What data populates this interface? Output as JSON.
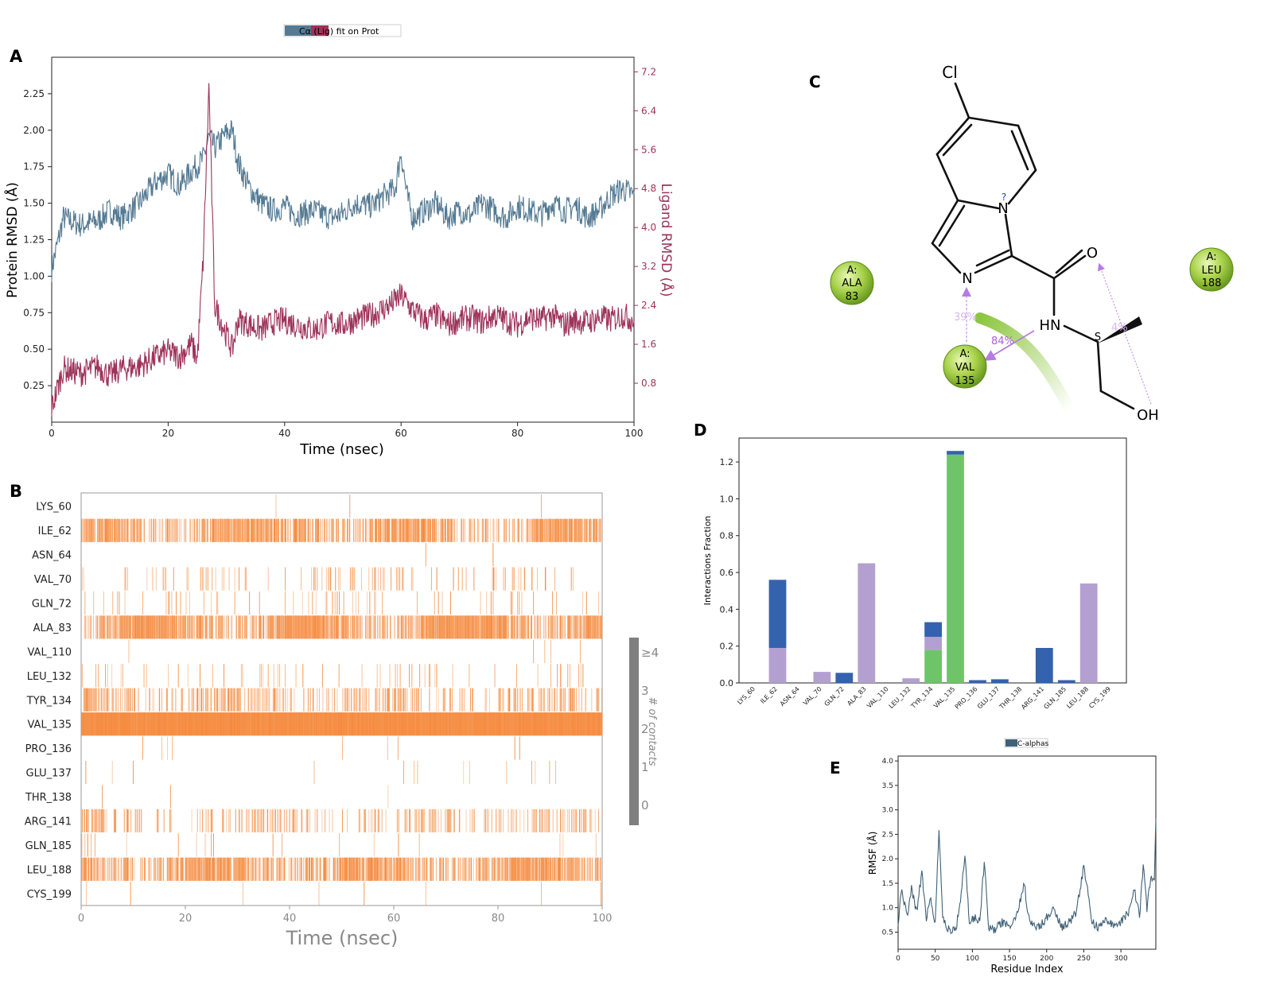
{
  "panel_labels": {
    "a": "A",
    "b": "B",
    "c": "C",
    "d": "D",
    "e": "E"
  },
  "colors": {
    "protein": "#557A93",
    "ligand": "#9E3359",
    "contact": "#F5893C",
    "hbond": "#6FC46A",
    "hydrophobic": "#B3A0D0",
    "water": "#3562AF",
    "rmsf": "#3F6178",
    "gradient_bar": "#7f7f7f",
    "residue_ball": "#9cc83a"
  },
  "chart_data": [
    {
      "id": "A",
      "type": "line",
      "legend": "Cα  (Lig) fit on Prot",
      "xlabel": "Time (nsec)",
      "ylabel_left": "Protein RMSD (Å)",
      "ylabel_right": "Ligand RMSD (Å)",
      "xlim": [
        0,
        100
      ],
      "ylim_left": [
        0,
        2.5
      ],
      "ylim_right": [
        0,
        7.5
      ],
      "x_ticks": [
        "0",
        "20",
        "40",
        "60",
        "80",
        "100"
      ],
      "y_ticks_left": [
        "0.25",
        "0.50",
        "0.75",
        "1.00",
        "1.25",
        "1.50",
        "1.75",
        "2.00",
        "2.25"
      ],
      "y_ticks_right": [
        "0.8",
        "1.6",
        "2.4",
        "3.2",
        "4.0",
        "4.8",
        "5.6",
        "6.4",
        "7.2"
      ],
      "series": [
        {
          "name": "Cα",
          "axis": "left",
          "x": [
            0,
            2,
            5,
            8,
            10,
            12,
            15,
            18,
            20,
            22,
            24,
            26,
            27,
            28,
            30,
            31,
            32,
            34,
            36,
            38,
            40,
            42,
            45,
            48,
            50,
            52,
            55,
            57,
            59,
            60,
            61,
            62,
            64,
            66,
            68,
            70,
            72,
            74,
            76,
            78,
            80,
            82,
            84,
            86,
            88,
            90,
            92,
            94,
            96,
            98,
            100
          ],
          "y": [
            1.05,
            1.4,
            1.35,
            1.38,
            1.45,
            1.4,
            1.5,
            1.65,
            1.7,
            1.62,
            1.72,
            1.8,
            1.95,
            1.88,
            1.98,
            2.0,
            1.78,
            1.6,
            1.5,
            1.45,
            1.48,
            1.42,
            1.45,
            1.4,
            1.43,
            1.5,
            1.48,
            1.55,
            1.6,
            1.85,
            1.55,
            1.4,
            1.45,
            1.5,
            1.4,
            1.45,
            1.42,
            1.5,
            1.45,
            1.4,
            1.48,
            1.45,
            1.42,
            1.5,
            1.45,
            1.48,
            1.4,
            1.45,
            1.55,
            1.6,
            1.55
          ]
        },
        {
          "name": "(Lig) fit on Prot",
          "axis": "right",
          "x": [
            0,
            2,
            5,
            8,
            10,
            12,
            15,
            18,
            20,
            22,
            24,
            25,
            26,
            27,
            28,
            30,
            31,
            32,
            34,
            36,
            38,
            40,
            42,
            45,
            48,
            50,
            52,
            55,
            58,
            60,
            62,
            64,
            66,
            68,
            70,
            72,
            74,
            76,
            78,
            80,
            82,
            84,
            86,
            88,
            90,
            92,
            94,
            96,
            98,
            100
          ],
          "y": [
            0.3,
            1.1,
            1.0,
            1.15,
            0.95,
            1.1,
            1.15,
            1.35,
            1.45,
            1.35,
            1.6,
            1.3,
            3.3,
            6.9,
            2.4,
            1.8,
            1.5,
            2.1,
            2.0,
            1.9,
            2.05,
            2.1,
            2.0,
            1.9,
            2.05,
            2.0,
            2.1,
            2.2,
            2.4,
            2.6,
            2.3,
            2.1,
            2.2,
            2.0,
            2.1,
            2.15,
            2.05,
            2.2,
            2.1,
            2.0,
            2.15,
            2.1,
            2.2,
            2.0,
            2.1,
            2.05,
            2.15,
            2.1,
            2.2,
            2.1
          ]
        }
      ]
    },
    {
      "id": "B",
      "type": "heatmap",
      "xlabel": "Time (nsec)",
      "xlim": [
        0,
        100
      ],
      "x_ticks": [
        "0",
        "20",
        "40",
        "60",
        "80",
        "100"
      ],
      "residues": [
        "LYS_60",
        "ILE_62",
        "ASN_64",
        "VAL_70",
        "GLN_72",
        "ALA_83",
        "VAL_110",
        "LEU_132",
        "TYR_134",
        "VAL_135",
        "PRO_136",
        "GLU_137",
        "THR_138",
        "ARG_141",
        "GLN_185",
        "LEU_188",
        "CYS_199"
      ],
      "occupancy": [
        0.003,
        0.5,
        0.003,
        0.08,
        0.05,
        0.66,
        0.002,
        0.04,
        0.25,
        1.0,
        0.01,
        0.02,
        0.004,
        0.19,
        0.015,
        0.56,
        0.004
      ],
      "colorbar_label": "# of contacts",
      "colorbar_ticks": [
        "0",
        "1",
        "2",
        "3",
        "≥4"
      ]
    },
    {
      "id": "D",
      "type": "bar",
      "stacked": true,
      "ylabel": "Interactions Fraction",
      "ylim": [
        0,
        1.33
      ],
      "y_ticks": [
        "0.0",
        "0.2",
        "0.4",
        "0.6",
        "0.8",
        "1.0",
        "1.2"
      ],
      "categories": [
        "LYS_60",
        "ILE_62",
        "ASN_64",
        "VAL_70",
        "GLN_72",
        "ALA_83",
        "VAL_110",
        "LEU_132",
        "TYR_134",
        "VAL_135",
        "PRO_136",
        "GLU_137",
        "THR_138",
        "ARG_141",
        "GLN_185",
        "LEU_188",
        "CYS_199"
      ],
      "series": [
        {
          "key": "hbond",
          "values": [
            0,
            0,
            0,
            0,
            0,
            0,
            0,
            0,
            0.18,
            1.24,
            0,
            0,
            0,
            0,
            0,
            0,
            0
          ]
        },
        {
          "key": "hydrophobic",
          "values": [
            0,
            0.19,
            0,
            0.06,
            0,
            0.65,
            0,
            0.025,
            0.07,
            0,
            0,
            0,
            0,
            0,
            0,
            0.54,
            0
          ]
        },
        {
          "key": "water",
          "values": [
            0,
            0.37,
            0,
            0,
            0.055,
            0,
            0,
            0,
            0.08,
            0.02,
            0.015,
            0.02,
            0,
            0.19,
            0.015,
            0,
            0
          ]
        }
      ]
    },
    {
      "id": "E",
      "type": "line",
      "legend": "C-alphas",
      "xlabel": "Residue Index",
      "ylabel": "RMSF (Å)",
      "xlim": [
        0,
        347
      ],
      "ylim": [
        0.15,
        4.1
      ],
      "x_ticks": [
        "0",
        "50",
        "100",
        "150",
        "200",
        "250",
        "300"
      ],
      "y_ticks": [
        "0.5",
        "1.0",
        "1.5",
        "2.0",
        "2.5",
        "3.0",
        "3.5",
        "4.0"
      ],
      "x": [
        0,
        5,
        12,
        18,
        25,
        32,
        38,
        44,
        50,
        55,
        60,
        66,
        72,
        78,
        84,
        90,
        96,
        102,
        110,
        116,
        122,
        130,
        140,
        150,
        160,
        170,
        175,
        180,
        190,
        200,
        210,
        220,
        230,
        240,
        250,
        255,
        260,
        270,
        280,
        290,
        300,
        310,
        318,
        325,
        330,
        335,
        340,
        345,
        347
      ],
      "y": [
        0.7,
        1.4,
        0.8,
        1.4,
        0.9,
        1.75,
        0.8,
        1.2,
        0.7,
        2.65,
        0.8,
        0.6,
        0.55,
        0.6,
        1.1,
        2.1,
        0.7,
        0.8,
        0.7,
        1.95,
        0.6,
        0.55,
        0.7,
        0.6,
        0.9,
        1.5,
        0.8,
        0.65,
        0.6,
        0.8,
        1.0,
        0.6,
        0.7,
        0.9,
        1.85,
        1.4,
        0.7,
        0.6,
        0.8,
        0.6,
        0.7,
        0.9,
        1.4,
        0.8,
        1.9,
        1.0,
        1.6,
        1.5,
        2.9
      ]
    }
  ],
  "panel_c": {
    "atoms": {
      "cl": "Cl",
      "n_top": "N",
      "n_top_mark": "?",
      "n_ring": "N",
      "o": "O",
      "hn": "HN",
      "s": "S",
      "oh": "OH"
    },
    "residues": [
      {
        "chain": "A:",
        "name": "ALA",
        "num": "83"
      },
      {
        "chain": "A:",
        "name": "VAL",
        "num": "135"
      },
      {
        "chain": "A:",
        "name": "LEU",
        "num": "188"
      }
    ],
    "percents": {
      "ring_n": "39%",
      "hn": "84%",
      "oh": "4%"
    }
  }
}
